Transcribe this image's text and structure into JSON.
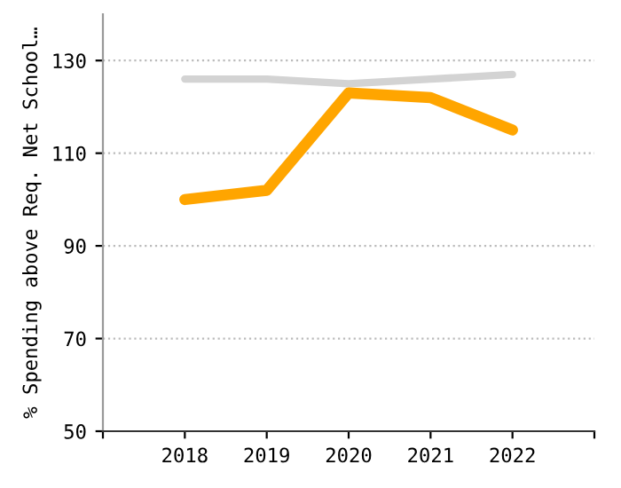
{
  "chart_data": {
    "type": "line",
    "ylabel": "% Spending above Req. Net School…",
    "x": [
      2018,
      2019,
      2020,
      2021,
      2022
    ],
    "series": [
      {
        "color": "#d3d3d3",
        "values": [
          126,
          126,
          125,
          126,
          127
        ]
      },
      {
        "color": "#ffa500",
        "values": [
          100,
          102,
          123,
          122,
          115
        ]
      }
    ],
    "xlim": [
      2017,
      2023
    ],
    "xticks": [
      {
        "value": 2017,
        "label": null
      },
      2018,
      2019,
      2020,
      2021,
      2022,
      {
        "value": 2023,
        "label": null
      }
    ],
    "ylim": [
      50,
      140
    ],
    "yticks": [
      50,
      70,
      90,
      110,
      130
    ],
    "grid": "y",
    "marker": "none",
    "line_style": "solid"
  }
}
